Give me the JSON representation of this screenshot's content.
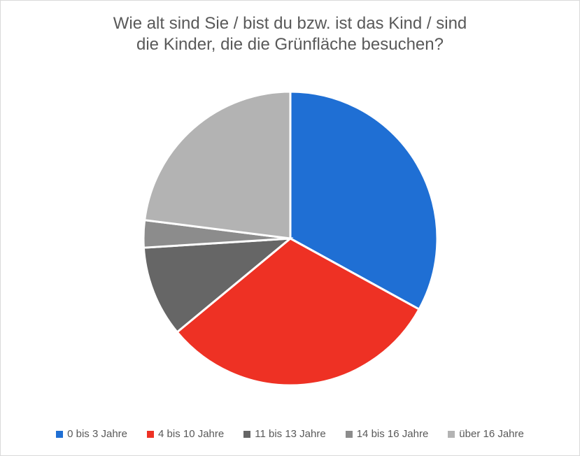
{
  "chart": {
    "type": "pie",
    "title_line1": "Wie alt sind Sie / bist du bzw. ist das Kind / sind",
    "title_line2": "die Kinder, die die Grünfläche besuchen?",
    "title_fontsize": 24,
    "title_color": "#595959",
    "background_color": "#ffffff",
    "border_color": "#d9d9d9",
    "pie_radius": 210,
    "pie_stroke": "#ffffff",
    "pie_stroke_width": 3,
    "legend_fontsize": 15,
    "legend_text_color": "#595959",
    "slices": [
      {
        "label": "0 bis 3 Jahre",
        "value": 33,
        "color": "#1f6fd4"
      },
      {
        "label": "4 bis 10 Jahre",
        "value": 31,
        "color": "#ee3124"
      },
      {
        "label": "11 bis 13 Jahre",
        "value": 10,
        "color": "#666666"
      },
      {
        "label": "14 bis 16 Jahre",
        "value": 3,
        "color": "#8c8c8c"
      },
      {
        "label": "über 16 Jahre",
        "value": 23,
        "color": "#b3b3b3"
      }
    ]
  }
}
